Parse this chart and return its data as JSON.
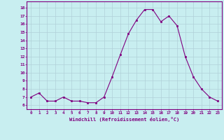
{
  "x": [
    0,
    1,
    2,
    3,
    4,
    5,
    6,
    7,
    8,
    9,
    10,
    11,
    12,
    13,
    14,
    15,
    16,
    17,
    18,
    19,
    20,
    21,
    22,
    23
  ],
  "y": [
    7.0,
    7.5,
    6.5,
    6.5,
    7.0,
    6.5,
    6.5,
    6.3,
    6.3,
    7.0,
    9.5,
    12.2,
    14.8,
    16.5,
    17.8,
    17.8,
    16.3,
    17.0,
    15.8,
    12.0,
    9.5,
    8.0,
    7.0,
    6.5
  ],
  "line_color": "#800080",
  "marker": "s",
  "marker_size": 2,
  "bg_color": "#c8eef0",
  "grid_color": "#b0d0d8",
  "xlabel": "Windchill (Refroidissement éolien,°C)",
  "xlabel_color": "#800080",
  "ylabel_ticks_color": "#800080",
  "xtick_labels": [
    "0",
    "1",
    "2",
    "3",
    "4",
    "5",
    "6",
    "7",
    "8",
    "9",
    "10",
    "11",
    "12",
    "13",
    "14",
    "15",
    "16",
    "17",
    "18",
    "19",
    "20",
    "21",
    "22",
    "23"
  ],
  "ytick_labels": [
    "6",
    "7",
    "8",
    "9",
    "10",
    "11",
    "12",
    "13",
    "14",
    "15",
    "16",
    "17",
    "18"
  ],
  "ytick_vals": [
    6,
    7,
    8,
    9,
    10,
    11,
    12,
    13,
    14,
    15,
    16,
    17,
    18
  ],
  "ylim": [
    5.5,
    18.8
  ],
  "xlim": [
    -0.5,
    23.5
  ],
  "font_family": "monospace"
}
